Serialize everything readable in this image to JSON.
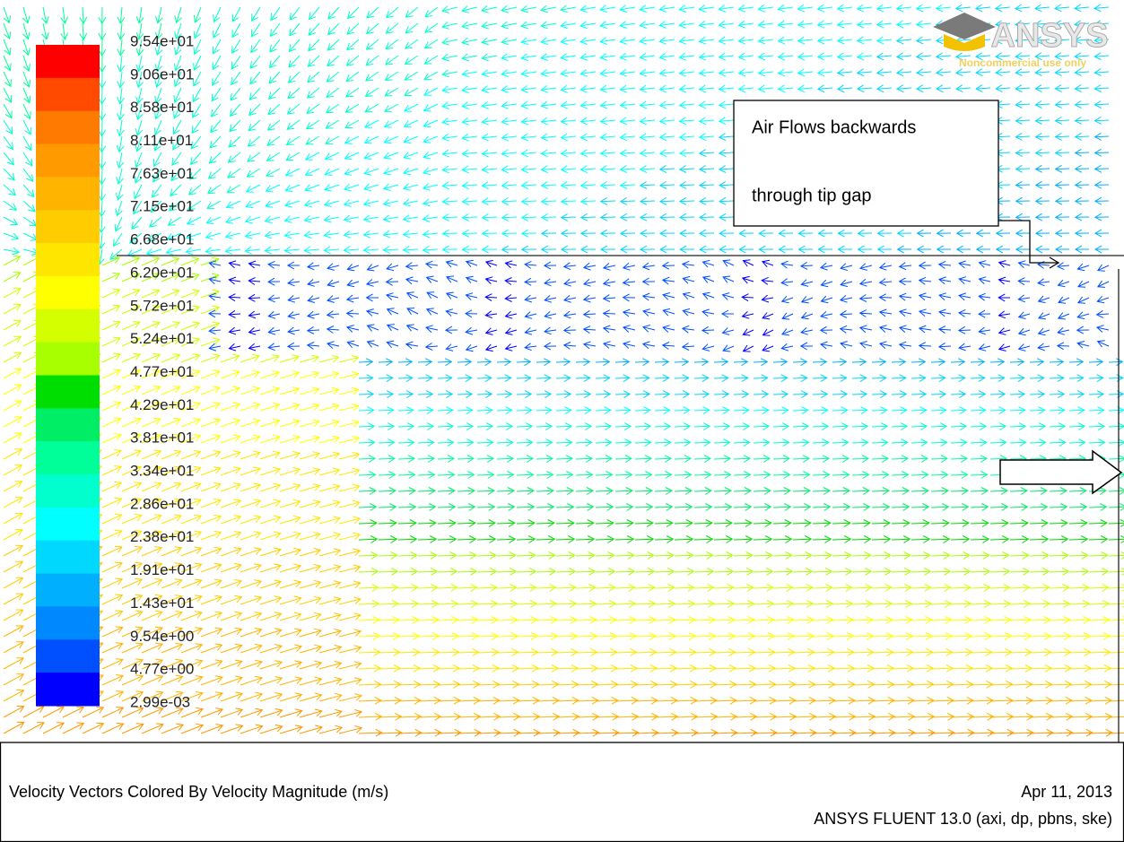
{
  "colorbar": {
    "labels": [
      "9.54e+01",
      "9.06e+01",
      "8.58e+01",
      "8.11e+01",
      "7.63e+01",
      "7.15e+01",
      "6.68e+01",
      "6.20e+01",
      "5.72e+01",
      "5.24e+01",
      "4.77e+01",
      "4.29e+01",
      "3.81e+01",
      "3.34e+01",
      "2.86e+01",
      "2.38e+01",
      "1.91e+01",
      "1.43e+01",
      "9.54e+00",
      "4.77e+00",
      "2.99e-03"
    ]
  },
  "annotation": {
    "lines": [
      "Air Flows backwards",
      "through tip gap"
    ]
  },
  "logo": {
    "brand": "ANSYS",
    "notice": "Noncommercial use only"
  },
  "footer": {
    "title": "Velocity Vectors Colored By Velocity Magnitude (m/s)",
    "date": "Apr 11, 2013",
    "software": "ANSYS FLUENT 13.0 (axi, dp, pbns, ske)"
  }
}
